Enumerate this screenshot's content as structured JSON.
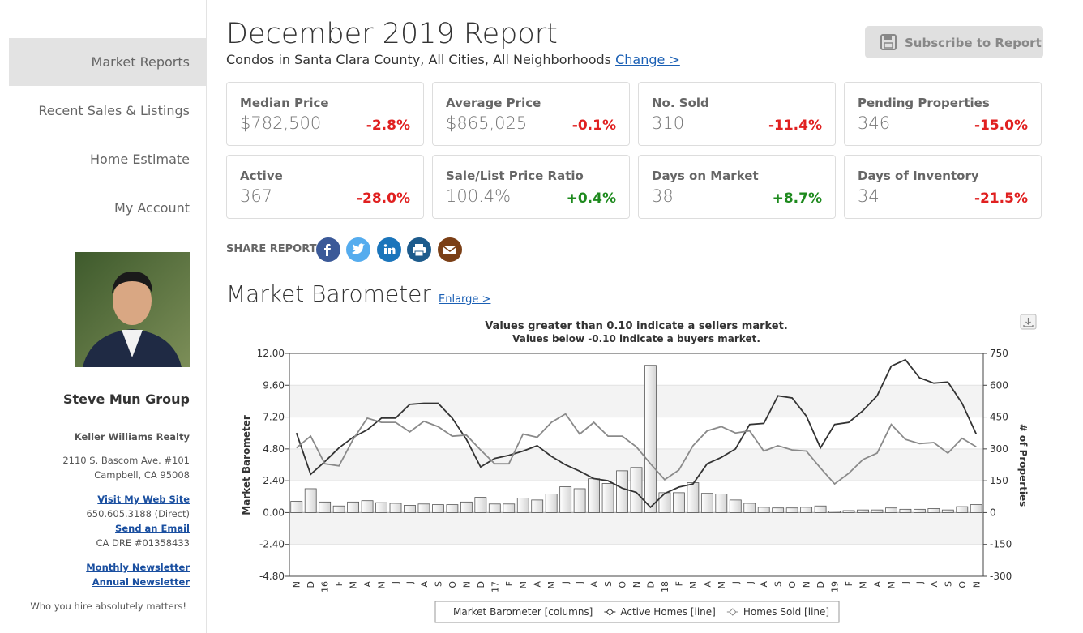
{
  "nav": [
    "Market Reports",
    "Recent Sales & Listings",
    "Home Estimate",
    "My Account"
  ],
  "agent": {
    "name": "Steve Mun Group",
    "company": "Keller Williams Realty",
    "address1": "2110 S. Bascom Ave. #101",
    "address2": "Campbell, CA 95008",
    "website": "Visit My Web Site",
    "phone": "650.605.3188  (Direct)",
    "email": "Send an Email",
    "license": "CA DRE #01358433",
    "newsletter_monthly": "Monthly Newsletter",
    "newsletter_annual": "Annual Newsletter",
    "tagline": "Who you hire absolutely matters!"
  },
  "header": {
    "title": "December 2019 Report",
    "subtitle": "Condos in Santa Clara County, All Cities, All Neighborhoods",
    "change_link": "Change >",
    "subscribe": "Subscribe to Report"
  },
  "stats": [
    {
      "label": "Median Price",
      "value": "$782,500",
      "change": "-2.8%"
    },
    {
      "label": "Average Price",
      "value": "$865,025",
      "change": "-0.1%"
    },
    {
      "label": "No. Sold",
      "value": "310",
      "change": "-11.4%"
    },
    {
      "label": "Pending Properties",
      "value": "346",
      "change": "-15.0%"
    },
    {
      "label": "Active",
      "value": "367",
      "change": "-28.0%"
    },
    {
      "label": "Sale/List Price Ratio",
      "value": "100.4%",
      "change": "+0.4%"
    },
    {
      "label": "Days on Market",
      "value": "38",
      "change": "+8.7%"
    },
    {
      "label": "Days of Inventory",
      "value": "34",
      "change": "-21.5%"
    }
  ],
  "share_label": "SHARE REPORT",
  "section": {
    "title": "Market Barometer",
    "enlarge": "Enlarge >"
  },
  "chart_data": {
    "type": "bar-line",
    "title": "Values greater than 0.10 indicate a sellers market.",
    "subtitle": "Values below -0.10 indicate a buyers market.",
    "ylabel": "Market Barometer",
    "y2label": "# of Properties",
    "categories": [
      "N",
      "D",
      "16",
      "F",
      "M",
      "A",
      "M",
      "J",
      "J",
      "A",
      "S",
      "O",
      "N",
      "D",
      "17",
      "F",
      "M",
      "A",
      "M",
      "J",
      "J",
      "A",
      "S",
      "O",
      "N",
      "D",
      "18",
      "F",
      "M",
      "A",
      "M",
      "J",
      "J",
      "A",
      "S",
      "O",
      "N",
      "D",
      "19",
      "F",
      "M",
      "A",
      "M",
      "J",
      "J",
      "A",
      "S",
      "O",
      "N"
    ],
    "ylim": [
      -4.8,
      12
    ],
    "yticks": [
      {
        "value": 12,
        "label": "12.00"
      },
      {
        "value": 9.6,
        "label": "9.60"
      },
      {
        "value": 7.2,
        "label": "7.20"
      },
      {
        "value": 4.8,
        "label": "4.80"
      },
      {
        "value": 2.4,
        "label": "2.40"
      },
      {
        "value": 0,
        "label": "0.00"
      },
      {
        "value": -2.4,
        "label": "-2.40"
      },
      {
        "value": -4.8,
        "label": "-4.80"
      }
    ],
    "y2lim": [
      -300,
      750
    ],
    "y2ticks": [
      750,
      600,
      450,
      300,
      150,
      0,
      -150,
      -300
    ],
    "grid": true,
    "series": [
      {
        "name": "Market Barometer [columns]",
        "type": "bar",
        "color": "#d4d4d4",
        "values": [
          0.85,
          1.8,
          0.8,
          0.5,
          0.8,
          0.9,
          0.75,
          0.7,
          0.55,
          0.65,
          0.6,
          0.6,
          0.8,
          1.15,
          0.65,
          0.65,
          1.1,
          0.95,
          1.4,
          1.95,
          1.8,
          2.55,
          2.2,
          3.15,
          3.4,
          11.1,
          1.5,
          1.5,
          2.25,
          1.45,
          1.4,
          0.95,
          0.7,
          0.4,
          0.35,
          0.35,
          0.4,
          0.5,
          0.1,
          0.15,
          0.2,
          0.2,
          0.35,
          0.25,
          0.25,
          0.3,
          0.2,
          0.45,
          0.6
        ]
      },
      {
        "name": "Active Homes [line]",
        "type": "line",
        "axis": "y2",
        "color": "#333333",
        "values": [
          375,
          180,
          240,
          305,
          355,
          390,
          445,
          445,
          510,
          515,
          515,
          445,
          345,
          215,
          255,
          270,
          290,
          315,
          265,
          225,
          195,
          160,
          150,
          115,
          95,
          25,
          90,
          120,
          135,
          230,
          260,
          300,
          415,
          420,
          550,
          540,
          455,
          305,
          415,
          425,
          480,
          550,
          690,
          720,
          635,
          610,
          615,
          515,
          370
        ]
      },
      {
        "name": "Homes Sold [line]",
        "type": "line",
        "axis": "y2",
        "color": "#8a8a8a",
        "values": [
          305,
          360,
          230,
          220,
          345,
          445,
          425,
          425,
          380,
          430,
          405,
          360,
          365,
          295,
          230,
          230,
          370,
          355,
          425,
          465,
          370,
          425,
          360,
          360,
          310,
          230,
          155,
          200,
          315,
          385,
          405,
          375,
          385,
          290,
          315,
          295,
          290,
          210,
          135,
          185,
          250,
          280,
          415,
          345,
          325,
          330,
          280,
          350,
          310
        ]
      }
    ]
  }
}
